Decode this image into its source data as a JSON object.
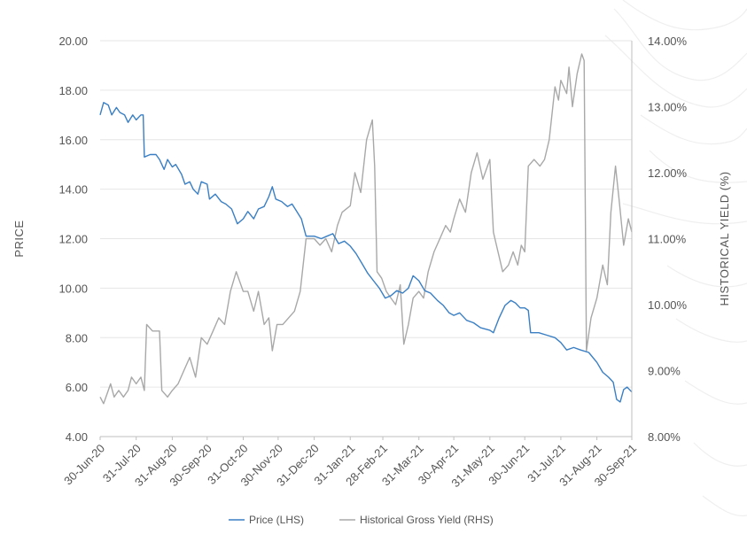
{
  "chart_data": {
    "type": "line",
    "ylabel_left": "PRICE",
    "ylabel_right": "HISTORICAL YIELD (%)",
    "ylim_left": [
      4,
      20
    ],
    "ylim_right": [
      8,
      14
    ],
    "y_ticks_left": [
      "4.00",
      "6.00",
      "8.00",
      "10.00",
      "12.00",
      "14.00",
      "16.00",
      "18.00",
      "20.00"
    ],
    "y_ticks_right": [
      "8.00%",
      "9.00%",
      "10.00%",
      "11.00%",
      "12.00%",
      "13.00%",
      "14.00%"
    ],
    "x_ticks": [
      "30-Jun-20",
      "31-Jul-20",
      "31-Aug-20",
      "30-Sep-20",
      "31-Oct-20",
      "30-Nov-20",
      "31-Dec-20",
      "31-Jan-21",
      "28-Feb-21",
      "31-Mar-21",
      "30-Apr-21",
      "31-May-21",
      "30-Jun-21",
      "31-Jul-21",
      "31-Aug-21",
      "30-Sep-21"
    ],
    "grid": "horizontal",
    "legend_position": "bottom",
    "series": [
      {
        "name": "Price (LHS)",
        "axis": "left",
        "color": "#3a7fc4",
        "points": [
          [
            "2020-06-30",
            17.0
          ],
          [
            "2020-07-03",
            17.5
          ],
          [
            "2020-07-07",
            17.4
          ],
          [
            "2020-07-10",
            17.0
          ],
          [
            "2020-07-14",
            17.3
          ],
          [
            "2020-07-17",
            17.1
          ],
          [
            "2020-07-21",
            17.0
          ],
          [
            "2020-07-24",
            16.7
          ],
          [
            "2020-07-28",
            17.0
          ],
          [
            "2020-07-31",
            16.8
          ],
          [
            "2020-08-04",
            17.0
          ],
          [
            "2020-08-06",
            17.0
          ],
          [
            "2020-08-07",
            15.3
          ],
          [
            "2020-08-12",
            15.4
          ],
          [
            "2020-08-17",
            15.4
          ],
          [
            "2020-08-20",
            15.2
          ],
          [
            "2020-08-24",
            14.8
          ],
          [
            "2020-08-27",
            15.2
          ],
          [
            "2020-08-31",
            14.9
          ],
          [
            "2020-09-03",
            15.0
          ],
          [
            "2020-09-08",
            14.6
          ],
          [
            "2020-09-11",
            14.2
          ],
          [
            "2020-09-15",
            14.3
          ],
          [
            "2020-09-18",
            14.0
          ],
          [
            "2020-09-22",
            13.8
          ],
          [
            "2020-09-25",
            14.3
          ],
          [
            "2020-09-30",
            14.2
          ],
          [
            "2020-10-02",
            13.6
          ],
          [
            "2020-10-07",
            13.8
          ],
          [
            "2020-10-12",
            13.5
          ],
          [
            "2020-10-16",
            13.4
          ],
          [
            "2020-10-21",
            13.2
          ],
          [
            "2020-10-26",
            12.6
          ],
          [
            "2020-10-31",
            12.8
          ],
          [
            "2020-11-04",
            13.1
          ],
          [
            "2020-11-09",
            12.8
          ],
          [
            "2020-11-13",
            13.2
          ],
          [
            "2020-11-18",
            13.3
          ],
          [
            "2020-11-22",
            13.7
          ],
          [
            "2020-11-25",
            14.1
          ],
          [
            "2020-11-28",
            13.6
          ],
          [
            "2020-12-03",
            13.5
          ],
          [
            "2020-12-08",
            13.3
          ],
          [
            "2020-12-12",
            13.4
          ],
          [
            "2020-12-16",
            13.1
          ],
          [
            "2020-12-20",
            12.8
          ],
          [
            "2020-12-24",
            12.1
          ],
          [
            "2020-12-31",
            12.1
          ],
          [
            "2021-01-06",
            12.0
          ],
          [
            "2021-01-11",
            12.1
          ],
          [
            "2021-01-16",
            12.2
          ],
          [
            "2021-01-21",
            11.8
          ],
          [
            "2021-01-26",
            11.9
          ],
          [
            "2021-01-31",
            11.7
          ],
          [
            "2021-02-05",
            11.4
          ],
          [
            "2021-02-10",
            11.0
          ],
          [
            "2021-02-15",
            10.6
          ],
          [
            "2021-02-20",
            10.3
          ],
          [
            "2021-02-25",
            10.0
          ],
          [
            "2021-03-02",
            9.6
          ],
          [
            "2021-03-07",
            9.7
          ],
          [
            "2021-03-12",
            9.9
          ],
          [
            "2021-03-17",
            9.8
          ],
          [
            "2021-03-22",
            10.0
          ],
          [
            "2021-03-26",
            10.5
          ],
          [
            "2021-03-31",
            10.3
          ],
          [
            "2021-04-05",
            9.9
          ],
          [
            "2021-04-10",
            9.8
          ],
          [
            "2021-04-16",
            9.5
          ],
          [
            "2021-04-21",
            9.3
          ],
          [
            "2021-04-26",
            9.0
          ],
          [
            "2021-04-30",
            8.9
          ],
          [
            "2021-05-05",
            9.0
          ],
          [
            "2021-05-11",
            8.7
          ],
          [
            "2021-05-17",
            8.6
          ],
          [
            "2021-05-23",
            8.4
          ],
          [
            "2021-05-31",
            8.3
          ],
          [
            "2021-06-03",
            8.2
          ],
          [
            "2021-06-08",
            8.8
          ],
          [
            "2021-06-13",
            9.3
          ],
          [
            "2021-06-18",
            9.5
          ],
          [
            "2021-06-22",
            9.4
          ],
          [
            "2021-06-26",
            9.2
          ],
          [
            "2021-06-30",
            9.2
          ],
          [
            "2021-07-03",
            9.1
          ],
          [
            "2021-07-05",
            8.2
          ],
          [
            "2021-07-12",
            8.2
          ],
          [
            "2021-07-19",
            8.1
          ],
          [
            "2021-07-26",
            8.0
          ],
          [
            "2021-07-31",
            7.8
          ],
          [
            "2021-08-05",
            7.5
          ],
          [
            "2021-08-11",
            7.6
          ],
          [
            "2021-08-17",
            7.5
          ],
          [
            "2021-08-24",
            7.4
          ],
          [
            "2021-08-31",
            7.0
          ],
          [
            "2021-09-05",
            6.6
          ],
          [
            "2021-09-10",
            6.4
          ],
          [
            "2021-09-14",
            6.2
          ],
          [
            "2021-09-17",
            5.5
          ],
          [
            "2021-09-20",
            5.4
          ],
          [
            "2021-09-23",
            5.9
          ],
          [
            "2021-09-26",
            6.0
          ],
          [
            "2021-09-30",
            5.8
          ]
        ]
      },
      {
        "name": "Historical Gross Yield (RHS)",
        "axis": "right",
        "color": "#a8a8a8",
        "points": [
          [
            "2020-06-30",
            8.6
          ],
          [
            "2020-07-03",
            8.5
          ],
          [
            "2020-07-07",
            8.7
          ],
          [
            "2020-07-09",
            8.8
          ],
          [
            "2020-07-12",
            8.6
          ],
          [
            "2020-07-16",
            8.7
          ],
          [
            "2020-07-20",
            8.6
          ],
          [
            "2020-07-24",
            8.7
          ],
          [
            "2020-07-27",
            8.9
          ],
          [
            "2020-07-31",
            8.8
          ],
          [
            "2020-08-04",
            8.9
          ],
          [
            "2020-08-07",
            8.7
          ],
          [
            "2020-08-09",
            9.7
          ],
          [
            "2020-08-14",
            9.6
          ],
          [
            "2020-08-20",
            9.6
          ],
          [
            "2020-08-22",
            8.7
          ],
          [
            "2020-08-27",
            8.6
          ],
          [
            "2020-08-31",
            8.7
          ],
          [
            "2020-09-05",
            8.8
          ],
          [
            "2020-09-10",
            9.0
          ],
          [
            "2020-09-15",
            9.2
          ],
          [
            "2020-09-20",
            8.9
          ],
          [
            "2020-09-25",
            9.5
          ],
          [
            "2020-09-30",
            9.4
          ],
          [
            "2020-10-05",
            9.6
          ],
          [
            "2020-10-10",
            9.8
          ],
          [
            "2020-10-15",
            9.7
          ],
          [
            "2020-10-20",
            10.2
          ],
          [
            "2020-10-25",
            10.5
          ],
          [
            "2020-10-31",
            10.2
          ],
          [
            "2020-11-04",
            10.2
          ],
          [
            "2020-11-09",
            9.9
          ],
          [
            "2020-11-13",
            10.2
          ],
          [
            "2020-11-18",
            9.7
          ],
          [
            "2020-11-22",
            9.8
          ],
          [
            "2020-11-25",
            9.3
          ],
          [
            "2020-11-29",
            9.7
          ],
          [
            "2020-12-04",
            9.7
          ],
          [
            "2020-12-09",
            9.8
          ],
          [
            "2020-12-14",
            9.9
          ],
          [
            "2020-12-19",
            10.2
          ],
          [
            "2020-12-24",
            11.0
          ],
          [
            "2020-12-31",
            11.0
          ],
          [
            "2021-01-05",
            10.9
          ],
          [
            "2021-01-10",
            11.0
          ],
          [
            "2021-01-15",
            10.8
          ],
          [
            "2021-01-20",
            11.2
          ],
          [
            "2021-01-24",
            11.4
          ],
          [
            "2021-01-31",
            11.5
          ],
          [
            "2021-02-04",
            12.0
          ],
          [
            "2021-02-09",
            11.7
          ],
          [
            "2021-02-14",
            12.5
          ],
          [
            "2021-02-19",
            12.8
          ],
          [
            "2021-02-21",
            12.1
          ],
          [
            "2021-02-23",
            10.5
          ],
          [
            "2021-02-27",
            10.4
          ],
          [
            "2021-03-03",
            10.2
          ],
          [
            "2021-03-07",
            10.1
          ],
          [
            "2021-03-11",
            10.0
          ],
          [
            "2021-03-15",
            10.3
          ],
          [
            "2021-03-18",
            9.4
          ],
          [
            "2021-03-22",
            9.7
          ],
          [
            "2021-03-26",
            10.1
          ],
          [
            "2021-03-31",
            10.2
          ],
          [
            "2021-04-04",
            10.1
          ],
          [
            "2021-04-08",
            10.5
          ],
          [
            "2021-04-13",
            10.8
          ],
          [
            "2021-04-18",
            11.0
          ],
          [
            "2021-04-23",
            11.2
          ],
          [
            "2021-04-27",
            11.1
          ],
          [
            "2021-04-30",
            11.3
          ],
          [
            "2021-05-05",
            11.6
          ],
          [
            "2021-05-10",
            11.4
          ],
          [
            "2021-05-15",
            12.0
          ],
          [
            "2021-05-20",
            12.3
          ],
          [
            "2021-05-25",
            11.9
          ],
          [
            "2021-05-31",
            12.2
          ],
          [
            "2021-06-03",
            11.1
          ],
          [
            "2021-06-07",
            10.8
          ],
          [
            "2021-06-11",
            10.5
          ],
          [
            "2021-06-16",
            10.6
          ],
          [
            "2021-06-20",
            10.8
          ],
          [
            "2021-06-24",
            10.6
          ],
          [
            "2021-06-27",
            10.9
          ],
          [
            "2021-06-30",
            10.8
          ],
          [
            "2021-07-03",
            12.1
          ],
          [
            "2021-07-08",
            12.2
          ],
          [
            "2021-07-13",
            12.1
          ],
          [
            "2021-07-17",
            12.2
          ],
          [
            "2021-07-21",
            12.5
          ],
          [
            "2021-07-26",
            13.3
          ],
          [
            "2021-07-29",
            13.1
          ],
          [
            "2021-07-31",
            13.4
          ],
          [
            "2021-08-05",
            13.2
          ],
          [
            "2021-08-07",
            13.6
          ],
          [
            "2021-08-10",
            13.0
          ],
          [
            "2021-08-14",
            13.5
          ],
          [
            "2021-08-18",
            13.8
          ],
          [
            "2021-08-20",
            13.7
          ],
          [
            "2021-08-22",
            9.3
          ],
          [
            "2021-08-26",
            9.8
          ],
          [
            "2021-08-31",
            10.1
          ],
          [
            "2021-09-05",
            10.6
          ],
          [
            "2021-09-09",
            10.3
          ],
          [
            "2021-09-12",
            11.4
          ],
          [
            "2021-09-16",
            12.1
          ],
          [
            "2021-09-19",
            11.6
          ],
          [
            "2021-09-23",
            10.9
          ],
          [
            "2021-09-27",
            11.3
          ],
          [
            "2021-09-30",
            11.1
          ]
        ]
      }
    ]
  }
}
